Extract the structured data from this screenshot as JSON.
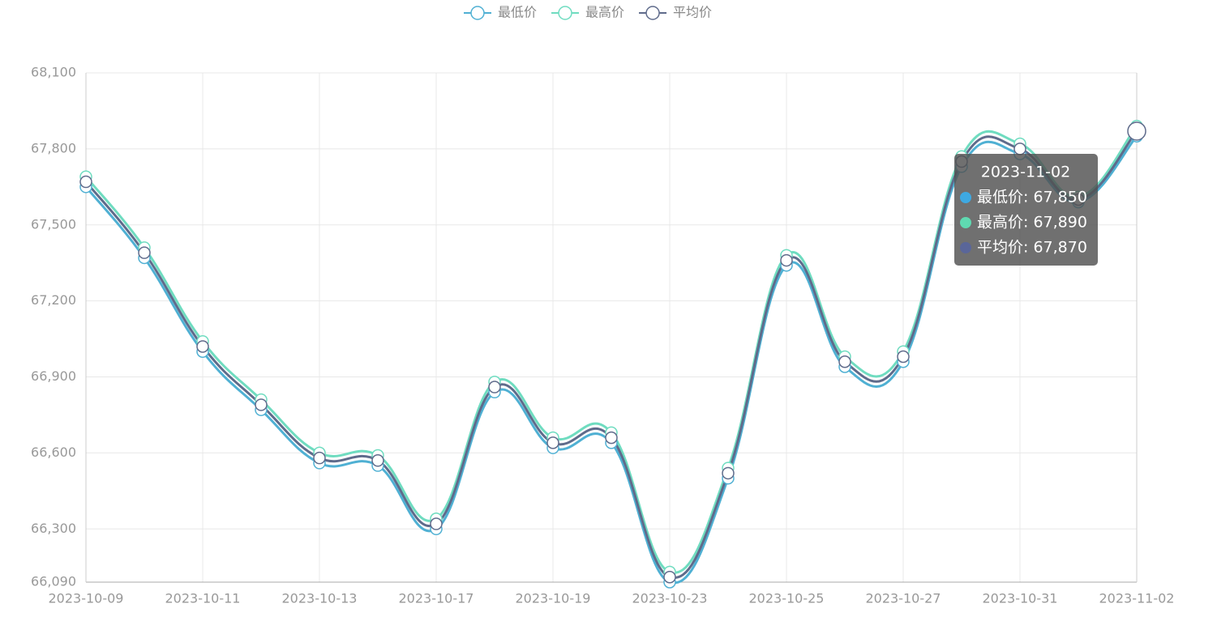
{
  "chart_data": {
    "type": "line",
    "categories": [
      "2023-10-09",
      null,
      "2023-10-11",
      null,
      "2023-10-13",
      null,
      "2023-10-17",
      null,
      "2023-10-19",
      null,
      "2023-10-23",
      null,
      "2023-10-25",
      null,
      "2023-10-27",
      null,
      "2023-10-31",
      null,
      "2023-11-02"
    ],
    "series": [
      {
        "name": "最低价",
        "color": "#4fb0d3",
        "values": [
          67650,
          67370,
          67000,
          66770,
          66560,
          66550,
          66300,
          66840,
          66620,
          66640,
          66090,
          66500,
          67340,
          66940,
          66960,
          67730,
          67780,
          67590,
          67850
        ]
      },
      {
        "name": "最高价",
        "color": "#6fdcc0",
        "values": [
          67690,
          67410,
          67040,
          66810,
          66600,
          66590,
          66340,
          66880,
          66660,
          66680,
          66130,
          66540,
          67380,
          66980,
          67000,
          67770,
          67820,
          67610,
          67890
        ]
      },
      {
        "name": "平均价",
        "color": "#5f6b8b",
        "values": [
          67670,
          67390,
          67020,
          66790,
          66580,
          66570,
          66320,
          66860,
          66640,
          66660,
          66110,
          66520,
          67360,
          66960,
          66980,
          67750,
          67800,
          67600,
          67870
        ]
      }
    ],
    "ylim": [
      66090,
      68100
    ],
    "yticks": [
      {
        "value": 66090,
        "label": "66,090"
      },
      {
        "value": 66300,
        "label": "66,300"
      },
      {
        "value": 66600,
        "label": "66,600"
      },
      {
        "value": 66900,
        "label": "66,900"
      },
      {
        "value": 67200,
        "label": "67,200"
      },
      {
        "value": 67500,
        "label": "67,500"
      },
      {
        "value": 67800,
        "label": "67,800"
      },
      {
        "value": 68100,
        "label": "68,100"
      }
    ],
    "grid": true,
    "tooltip": {
      "title": "2023-11-02",
      "rows": [
        "最低价: 67,850",
        "最高价: 67,890",
        "平均价: 67,870"
      ],
      "colors": [
        "#3ea9e2",
        "#5fd9b1",
        "#5a6699"
      ]
    }
  }
}
